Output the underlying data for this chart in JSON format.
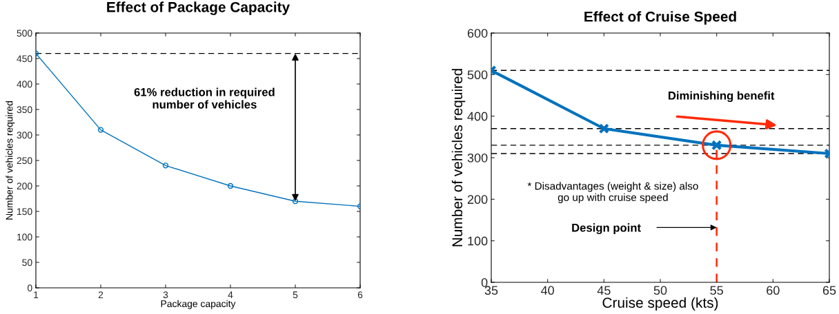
{
  "chart_data": [
    {
      "type": "line",
      "title": "Effect of Package Capacity",
      "xlabel": "Package capacity",
      "ylabel": "Number of vehicles required",
      "x": [
        1,
        2,
        3,
        4,
        5,
        6
      ],
      "series": [
        {
          "color": "#0072bd",
          "values": [
            460,
            310,
            240,
            200,
            170,
            160
          ]
        }
      ],
      "marker": "circle",
      "line_style": "solid",
      "xlim": [
        1,
        6
      ],
      "xticks": [
        1,
        2,
        3,
        4,
        5,
        6
      ],
      "ylim": [
        0,
        500
      ],
      "yticks": [
        0,
        50,
        100,
        150,
        200,
        250,
        300,
        350,
        400,
        450,
        500
      ],
      "ref_lines": [
        {
          "axis": "y",
          "value": 460,
          "color": "#000000",
          "line_style": "dashed"
        }
      ],
      "annotations": [
        "61% reduction in required\nnumber of vehicles"
      ],
      "grid": false,
      "legend": false
    },
    {
      "type": "line",
      "title": "Effect of Cruise Speed",
      "xlabel": "Cruise speed (kts)",
      "ylabel": "Number of vehicles required",
      "x": [
        35,
        45,
        55,
        65
      ],
      "series": [
        {
          "color": "#0072bd",
          "values": [
            510,
            370,
            330,
            310
          ]
        }
      ],
      "marker": "cross",
      "line_style": "solid",
      "xlim": [
        35,
        65
      ],
      "xticks": [
        35,
        40,
        45,
        50,
        55,
        60,
        65
      ],
      "ylim": [
        0,
        600
      ],
      "yticks": [
        0,
        100,
        200,
        300,
        400,
        500,
        600
      ],
      "ref_lines": [
        {
          "axis": "y",
          "value": 510,
          "color": "#000000",
          "line_style": "dashed"
        },
        {
          "axis": "y",
          "value": 370,
          "color": "#000000",
          "line_style": "dashed"
        },
        {
          "axis": "y",
          "value": 330,
          "color": "#000000",
          "line_style": "dashed"
        },
        {
          "axis": "y",
          "value": 310,
          "color": "#000000",
          "line_style": "dashed"
        },
        {
          "axis": "x",
          "value": 55,
          "color": "#ff2a0a",
          "line_style": "dashed"
        }
      ],
      "annotations": [
        "Diminishing benefit",
        "* Disadvantages (weight & size) also\ngo up with cruise speed",
        "Design point"
      ],
      "grid": false,
      "legend": false
    }
  ]
}
